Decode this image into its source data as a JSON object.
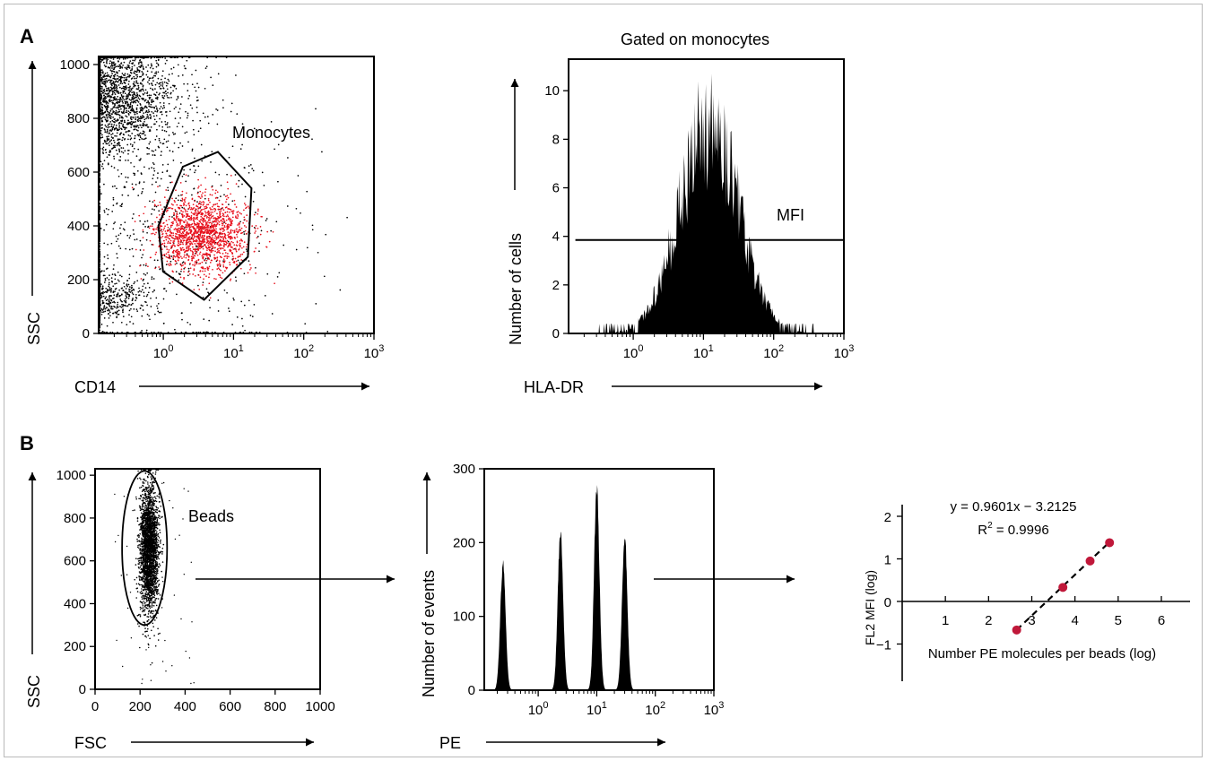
{
  "panels": {
    "a": "A",
    "b": "B"
  },
  "chart_data": [
    {
      "id": "a1",
      "type": "scatter",
      "title": "",
      "xlabel": "CD14",
      "ylabel": "SSC",
      "xscale": "log",
      "xlim": [
        0.12,
        1000
      ],
      "ylim": [
        0,
        1030
      ],
      "x_tick_labels": [
        {
          "v": 1,
          "base": "10",
          "exp": "0"
        },
        {
          "v": 10,
          "base": "10",
          "exp": "1"
        },
        {
          "v": 100,
          "base": "10",
          "exp": "2"
        },
        {
          "v": 1000,
          "base": "10",
          "exp": "3"
        }
      ],
      "y_tick_labels": [
        0,
        200,
        400,
        600,
        800,
        1000
      ],
      "annotation": "Monocytes",
      "populations": [
        {
          "name": "",
          "color": "#000000",
          "n": 2600,
          "center": [
            0.15,
            880
          ],
          "spread": [
            0.5,
            110
          ]
        },
        {
          "name": "",
          "color": "#000000",
          "n": 450,
          "center": [
            0.14,
            130
          ],
          "spread": [
            0.3,
            40
          ]
        },
        {
          "name": "",
          "color": "#000000",
          "n": 900,
          "center": [
            0.5,
            400
          ],
          "spread": [
            1.1,
            260
          ]
        },
        {
          "name": "Monocytes",
          "color": "#e8101c",
          "n": 1600,
          "center": [
            3.5,
            370
          ],
          "spread": [
            0.33,
            70
          ]
        }
      ],
      "gate": [
        [
          1.9,
          620
        ],
        [
          6,
          675
        ],
        [
          18,
          540
        ],
        [
          16,
          285
        ],
        [
          3.8,
          125
        ],
        [
          0.99,
          230
        ],
        [
          0.85,
          400
        ]
      ]
    },
    {
      "id": "a2",
      "type": "histogram",
      "title": "Gated on monocytes",
      "xlabel": "HLA-DR",
      "ylabel": "Number of cells",
      "xscale": "log",
      "xlim": [
        0.12,
        1000
      ],
      "ylim": [
        0,
        11.3
      ],
      "x_tick_labels": [
        {
          "v": 1,
          "base": "10",
          "exp": "0"
        },
        {
          "v": 10,
          "base": "10",
          "exp": "1"
        },
        {
          "v": 100,
          "base": "10",
          "exp": "2"
        },
        {
          "v": 1000,
          "base": "10",
          "exp": "3"
        }
      ],
      "y_tick_labels": [
        0,
        2,
        4,
        6,
        8,
        10
      ],
      "peak": {
        "x": 12,
        "y": 10.7,
        "width_log": 0.42
      },
      "range": [
        0.3,
        400
      ],
      "mfi_line": {
        "label": "MFI",
        "y": 3.85,
        "x_range": [
          0.15,
          1000
        ]
      }
    },
    {
      "id": "b1",
      "type": "scatter",
      "title": "",
      "xlabel": "FSC",
      "ylabel": "SSC",
      "xlim": [
        0,
        1000
      ],
      "ylim": [
        0,
        1030
      ],
      "x_tick_labels": [
        0,
        200,
        400,
        600,
        800,
        1000
      ],
      "y_tick_labels": [
        0,
        200,
        400,
        600,
        800,
        1000
      ],
      "annotation": "Beads",
      "populations": [
        {
          "name": "Beads",
          "color": "#000000",
          "n": 2600,
          "center": [
            240,
            650
          ],
          "spread": [
            20,
            150
          ]
        }
      ],
      "gate_ellipse": {
        "cx": 220,
        "cy": 660,
        "rx": 100,
        "ry": 360
      }
    },
    {
      "id": "b2",
      "type": "histogram",
      "title": "",
      "xlabel": "PE",
      "ylabel": "Number of events",
      "xscale": "log",
      "xlim": [
        0.12,
        1000
      ],
      "ylim": [
        0,
        300
      ],
      "x_tick_labels": [
        {
          "v": 1,
          "base": "10",
          "exp": "0"
        },
        {
          "v": 10,
          "base": "10",
          "exp": "1"
        },
        {
          "v": 100,
          "base": "10",
          "exp": "2"
        },
        {
          "v": 1000,
          "base": "10",
          "exp": "3"
        }
      ],
      "y_tick_labels": [
        0,
        100,
        200,
        300
      ],
      "peaks": [
        {
          "x": 0.25,
          "y": 178
        },
        {
          "x": 2.4,
          "y": 225
        },
        {
          "x": 10,
          "y": 287
        },
        {
          "x": 30,
          "y": 219
        }
      ]
    },
    {
      "id": "b3",
      "type": "scatter",
      "title": "",
      "xlabel": "Number PE molecules per beads (log)",
      "ylabel": "FL2 MFI (log)",
      "xlim": [
        0,
        6.2
      ],
      "ylim": [
        -1.35,
        2.3
      ],
      "x_tick_labels": [
        1,
        2,
        3,
        4,
        5,
        6
      ],
      "y_tick_labels": [
        -1,
        0,
        1,
        2
      ],
      "point_color": "#c0183a",
      "points": [
        {
          "x": 2.65,
          "y": -0.67
        },
        {
          "x": 3.72,
          "y": 0.33
        },
        {
          "x": 4.35,
          "y": 0.95
        },
        {
          "x": 4.8,
          "y": 1.38
        }
      ],
      "fit": {
        "slope": 0.9601,
        "intercept": -3.2125,
        "x_range": [
          2.65,
          4.8
        ]
      },
      "equation": "y = 0.9601x − 3.2125",
      "r2_prefix": "R",
      "r2_sup": "2",
      "r2_suffix": " = 0.9996"
    }
  ]
}
